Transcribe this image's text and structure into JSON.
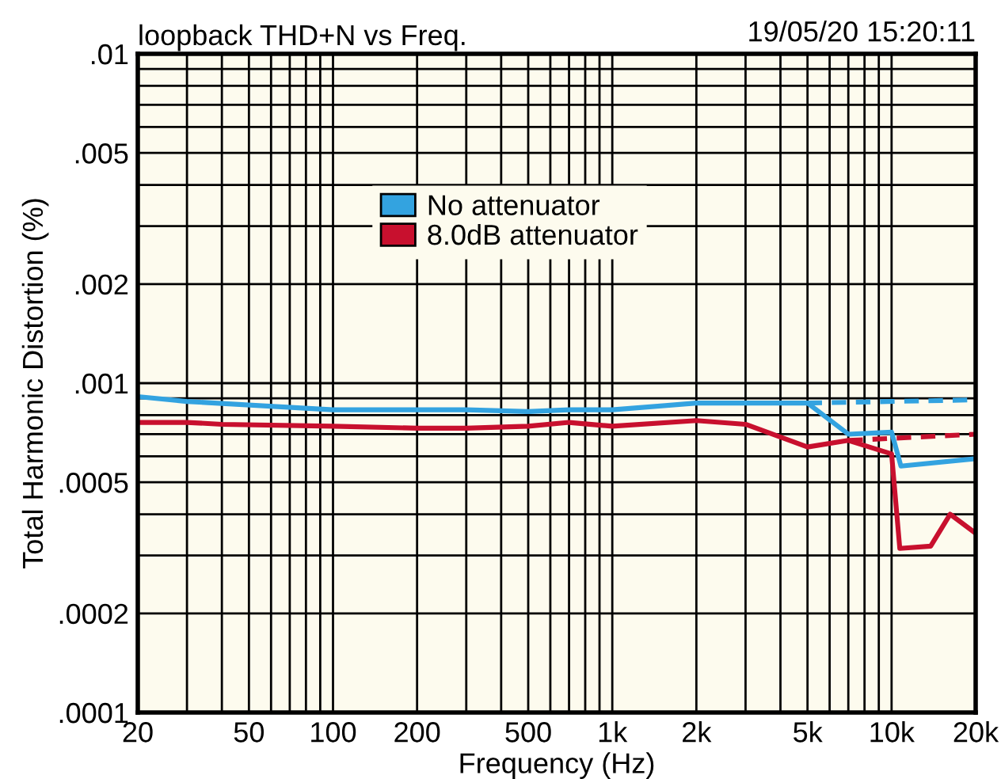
{
  "chart_data": {
    "type": "line",
    "title": "loopback THD+N vs Freq.",
    "xlabel": "Frequency (Hz)",
    "ylabel": "Total Harmonic Distortion (%)",
    "annotations": [
      "19/05/20 15:20:11"
    ],
    "log": "xy",
    "grid": true,
    "legend": "top",
    "line_style": "solid",
    "marker": "none",
    "xlim": [
      20,
      20000
    ],
    "ylim": [
      0.0001,
      0.01
    ],
    "xticks": [
      20,
      {
        "value": 30,
        "label": null
      },
      {
        "value": 40,
        "label": null
      },
      50,
      {
        "value": 60,
        "label": null
      },
      {
        "value": 70,
        "label": null
      },
      {
        "value": 80,
        "label": null
      },
      {
        "value": 90,
        "label": null
      },
      100,
      200,
      {
        "value": 300,
        "label": null
      },
      {
        "value": 400,
        "label": null
      },
      500,
      {
        "value": 600,
        "label": null
      },
      {
        "value": 700,
        "label": null
      },
      {
        "value": 800,
        "label": null
      },
      {
        "value": 900,
        "label": null
      },
      {
        "value": 1000,
        "label": "1k"
      },
      {
        "value": 2000,
        "label": "2k"
      },
      {
        "value": 3000,
        "label": null
      },
      {
        "value": 4000,
        "label": null
      },
      {
        "value": 5000,
        "label": "5k"
      },
      {
        "value": 6000,
        "label": null
      },
      {
        "value": 7000,
        "label": null
      },
      {
        "value": 8000,
        "label": null
      },
      {
        "value": 9000,
        "label": null
      },
      {
        "value": 10000,
        "label": "10k"
      },
      {
        "value": 20000,
        "label": "20k"
      }
    ],
    "yticks": [
      {
        "value": 0.0001,
        "label": ".0001"
      },
      {
        "value": 0.0002,
        "label": ".0002"
      },
      {
        "value": 0.0003,
        "label": null
      },
      {
        "value": 0.0004,
        "label": null
      },
      {
        "value": 0.0005,
        "label": ".0005"
      },
      {
        "value": 0.0006,
        "label": null
      },
      {
        "value": 0.0007,
        "label": null
      },
      {
        "value": 0.0008,
        "label": null
      },
      {
        "value": 0.0009,
        "label": null
      },
      {
        "value": 0.001,
        "label": ".001"
      },
      {
        "value": 0.002,
        "label": ".002"
      },
      {
        "value": 0.003,
        "label": null
      },
      {
        "value": 0.004,
        "label": null
      },
      {
        "value": 0.005,
        "label": ".005"
      },
      {
        "value": 0.006,
        "label": null
      },
      {
        "value": 0.007,
        "label": null
      },
      {
        "value": 0.008,
        "label": null
      },
      {
        "value": 0.009,
        "label": null
      },
      {
        "value": 0.01,
        "label": ".01"
      }
    ],
    "series": [
      {
        "name": "No attenuator",
        "color": "#33a3e0",
        "x": [
          20,
          30,
          100,
          300,
          500,
          700,
          1000,
          2000,
          5000,
          7000,
          10000,
          10800,
          20000
        ],
        "values": [
          0.00091,
          0.00088,
          0.00083,
          0.00083,
          0.00082,
          0.00083,
          0.00083,
          0.00087,
          0.00087,
          0.0007,
          0.00071,
          0.00056,
          0.00059
        ]
      },
      {
        "name": "8.0dB attenuator",
        "color": "#c8102e",
        "x": [
          20,
          30,
          40,
          100,
          200,
          300,
          500,
          700,
          1000,
          2000,
          3000,
          5000,
          7000,
          10000,
          10700,
          13800,
          16200,
          20000
        ],
        "values": [
          0.00076,
          0.00076,
          0.00075,
          0.00074,
          0.00073,
          0.00073,
          0.00074,
          0.00076,
          0.00074,
          0.00077,
          0.00075,
          0.00064,
          0.00067,
          0.00061,
          0.000315,
          0.00032,
          0.0004,
          0.00035
        ]
      },
      {
        "color": "#33a3e0",
        "line_style": "dashed",
        "x": [
          5000,
          20000
        ],
        "values": [
          0.00087,
          0.00089
        ]
      },
      {
        "color": "#c8102e",
        "line_style": "dashed",
        "x": [
          7000,
          20000
        ],
        "values": [
          0.00067,
          0.0007
        ]
      }
    ]
  }
}
